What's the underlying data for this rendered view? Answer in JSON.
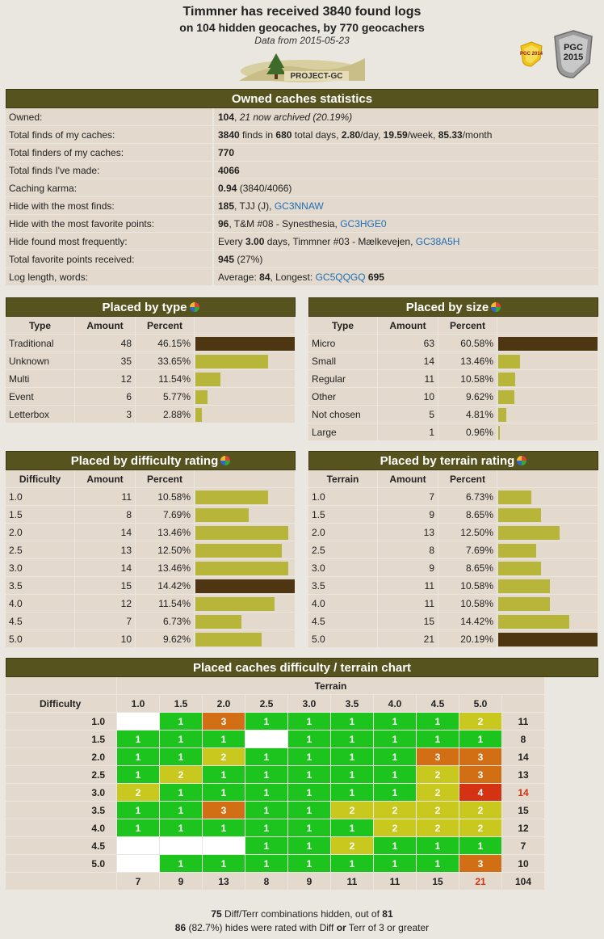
{
  "header": {
    "title": "Timmner has received 3840 found logs",
    "subtitle": "on 104 hidden geocaches, by 770 geocachers",
    "date": "Data from 2015-05-23",
    "logo_text": "PROJECT-GC",
    "badge_small": "PGC 2014",
    "badge_big_l1": "PGC",
    "badge_big_l2": "2015"
  },
  "owned": {
    "title": "Owned caches statistics",
    "rows": [
      {
        "k": "Owned:",
        "v": "<b>104</b>, <i>21 now archived (20.19%)</i>"
      },
      {
        "k": "Total finds of my caches:",
        "v": "<b>3840</b> finds in <b>680</b> total days, <b>2.80</b>/day, <b>19.59</b>/week, <b>85.33</b>/month"
      },
      {
        "k": "Total finders of my caches:",
        "v": "<b>770</b>"
      },
      {
        "k": "Total finds I've made:",
        "v": "<b>4066</b>"
      },
      {
        "k": "Caching karma:",
        "v": "<b>0.94</b> (3840/4066)"
      },
      {
        "k": "Hide with the most finds:",
        "v": "<b>185</b>, TJJ (J), <span class='lnk'>GC3NNAW</span>"
      },
      {
        "k": "Hide with the most favorite points:",
        "v": "<b>96</b>, T&amp;M #08 - Synesthesia, <span class='lnk'>GC3HGE0</span>"
      },
      {
        "k": "Hide found most frequently:",
        "v": "Every <b>3.00</b> days, Timmner #03 - Mælkevejen, <span class='lnk'>GC38A5H</span>"
      },
      {
        "k": "Total favorite points received:",
        "v": "<b>945</b> (27%)"
      },
      {
        "k": "Log length, words:",
        "v": "Average: <b>84</b>, Longest: <span class='lnk'>GC5QQGQ</span> <b>695</b>"
      }
    ]
  },
  "tables": [
    {
      "id": "type",
      "title": "Placed by type",
      "cols": [
        "Type",
        "Amount",
        "Percent"
      ],
      "rows": [
        [
          "Traditional",
          "48",
          "46.15%",
          46.15
        ],
        [
          "Unknown",
          "35",
          "33.65%",
          33.65
        ],
        [
          "Multi",
          "12",
          "11.54%",
          11.54
        ],
        [
          "Event",
          "6",
          "5.77%",
          5.77
        ],
        [
          "Letterbox",
          "3",
          "2.88%",
          2.88
        ]
      ],
      "max": 46.15
    },
    {
      "id": "size",
      "title": "Placed by size",
      "cols": [
        "Type",
        "Amount",
        "Percent"
      ],
      "rows": [
        [
          "Micro",
          "63",
          "60.58%",
          60.58
        ],
        [
          "Small",
          "14",
          "13.46%",
          13.46
        ],
        [
          "Regular",
          "11",
          "10.58%",
          10.58
        ],
        [
          "Other",
          "10",
          "9.62%",
          9.62
        ],
        [
          "Not chosen",
          "5",
          "4.81%",
          4.81
        ],
        [
          "Large",
          "1",
          "0.96%",
          0.96
        ]
      ],
      "max": 60.58
    },
    {
      "id": "diff",
      "title": "Placed by difficulty rating",
      "cols": [
        "Difficulty",
        "Amount",
        "Percent"
      ],
      "rows": [
        [
          "1.0",
          "11",
          "10.58%",
          10.58
        ],
        [
          "1.5",
          "8",
          "7.69%",
          7.69
        ],
        [
          "2.0",
          "14",
          "13.46%",
          13.46
        ],
        [
          "2.5",
          "13",
          "12.50%",
          12.5
        ],
        [
          "3.0",
          "14",
          "13.46%",
          13.46
        ],
        [
          "3.5",
          "15",
          "14.42%",
          14.42
        ],
        [
          "4.0",
          "12",
          "11.54%",
          11.54
        ],
        [
          "4.5",
          "7",
          "6.73%",
          6.73
        ],
        [
          "5.0",
          "10",
          "9.62%",
          9.62
        ]
      ],
      "max": 14.42
    },
    {
      "id": "terr",
      "title": "Placed by terrain rating",
      "cols": [
        "Terrain",
        "Amount",
        "Percent"
      ],
      "rows": [
        [
          "1.0",
          "7",
          "6.73%",
          6.73
        ],
        [
          "1.5",
          "9",
          "8.65%",
          8.65
        ],
        [
          "2.0",
          "13",
          "12.50%",
          12.5
        ],
        [
          "2.5",
          "8",
          "7.69%",
          7.69
        ],
        [
          "3.0",
          "9",
          "8.65%",
          8.65
        ],
        [
          "3.5",
          "11",
          "10.58%",
          10.58
        ],
        [
          "4.0",
          "11",
          "10.58%",
          10.58
        ],
        [
          "4.5",
          "15",
          "14.42%",
          14.42
        ],
        [
          "5.0",
          "21",
          "20.19%",
          20.19
        ]
      ],
      "max": 20.19
    }
  ],
  "matrix": {
    "title": "Placed caches difficulty / terrain chart",
    "terrain_label": "Terrain",
    "difficulty_label": "Difficulty",
    "levels": [
      "1.0",
      "1.5",
      "2.0",
      "2.5",
      "3.0",
      "3.5",
      "4.0",
      "4.5",
      "5.0"
    ],
    "cells": [
      [
        "",
        "1g",
        "3o",
        "1g",
        "1g",
        "1g",
        "1g",
        "1g",
        "2y"
      ],
      [
        "1g",
        "1g",
        "1g",
        "",
        "1g",
        "1g",
        "1g",
        "1g",
        "1g"
      ],
      [
        "1g",
        "1g",
        "2y",
        "1g",
        "1g",
        "1g",
        "1g",
        "3o",
        "3o"
      ],
      [
        "1g",
        "2y",
        "1g",
        "1g",
        "1g",
        "1g",
        "1g",
        "2y",
        "3o"
      ],
      [
        "2y",
        "1g",
        "1g",
        "1g",
        "1g",
        "1g",
        "1g",
        "2y",
        "4r"
      ],
      [
        "1g",
        "1g",
        "3o",
        "1g",
        "1g",
        "2y",
        "2y",
        "2y",
        "2y"
      ],
      [
        "1g",
        "1g",
        "1g",
        "1g",
        "1g",
        "1g",
        "2y",
        "2y",
        "2y"
      ],
      [
        "",
        "",
        "",
        "1g",
        "1g",
        "2y",
        "1g",
        "1g",
        "1g"
      ],
      [
        "",
        "1g",
        "1g",
        "1g",
        "1g",
        "1g",
        "1g",
        "1g",
        "3o"
      ]
    ],
    "row_totals": [
      "11",
      "8",
      "14",
      "13",
      "14",
      "15",
      "12",
      "7",
      "10"
    ],
    "col_totals": [
      "7",
      "9",
      "13",
      "8",
      "9",
      "11",
      "11",
      "15",
      "21"
    ],
    "grand_total": "104"
  },
  "footer": {
    "line1": "<b>75</b> Diff/Terr combinations hidden, out of <b>81</b>",
    "line2": "<b>86</b> (82.7%) hides were rated with Diff <b>or</b> Terr of 3 or greater"
  }
}
